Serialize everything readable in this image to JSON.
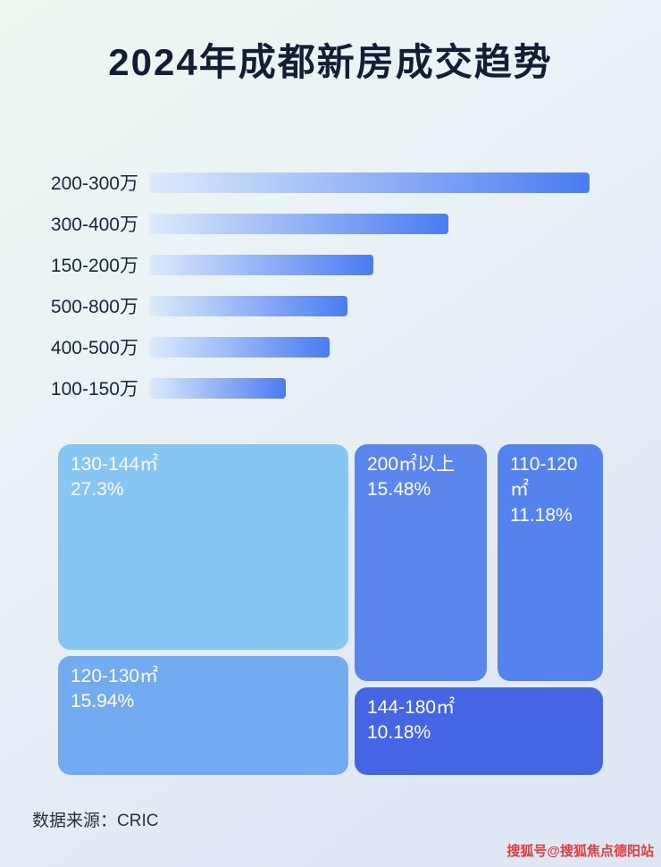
{
  "title": "2024年成都新房成交趋势",
  "source": "数据来源：CRIC",
  "watermark": "搜狐号@搜狐焦点德阳站",
  "colors": {
    "title_text": "#121d36",
    "bar_label_text": "#18253f",
    "watermark_red": "#e23d3a",
    "background_gradient": [
      "#eef7f0",
      "#dee6f4"
    ]
  },
  "chart_data": [
    {
      "type": "bar",
      "orientation": "horizontal",
      "categories": [
        "200-300万",
        "300-400万",
        "150-200万",
        "500-800万",
        "400-500万",
        "100-150万"
      ],
      "values": [
        100,
        68,
        51,
        45,
        41,
        31
      ],
      "values_note": "relative bar lengths as % of longest bar; no numeric axis or data labels shown in image",
      "bar_gradient": [
        "#dcebfb",
        "#4a7bf2"
      ],
      "legend": "none",
      "grid": "off"
    },
    {
      "type": "treemap",
      "items": [
        {
          "label": "130-144㎡",
          "value": 27.3,
          "pct_label": "27.3%",
          "color": "#87c6f3",
          "text_color": "#ffffff"
        },
        {
          "label": "120-130㎡",
          "value": 15.94,
          "pct_label": "15.94%",
          "color": "#72abf0",
          "text_color": "#ffffff"
        },
        {
          "label": "200㎡以上",
          "value": 15.48,
          "pct_label": "15.48%",
          "color": "#5b86ee",
          "text_color": "#ffffff"
        },
        {
          "label": "110-120㎡",
          "value": 11.18,
          "pct_label": "11.18%",
          "color": "#5583ee",
          "text_color": "#ffffff"
        },
        {
          "label": "144-180㎡",
          "value": 10.18,
          "pct_label": "10.18%",
          "color": "#4565e4",
          "text_color": "#ffffff"
        }
      ],
      "legend": "none"
    }
  ]
}
